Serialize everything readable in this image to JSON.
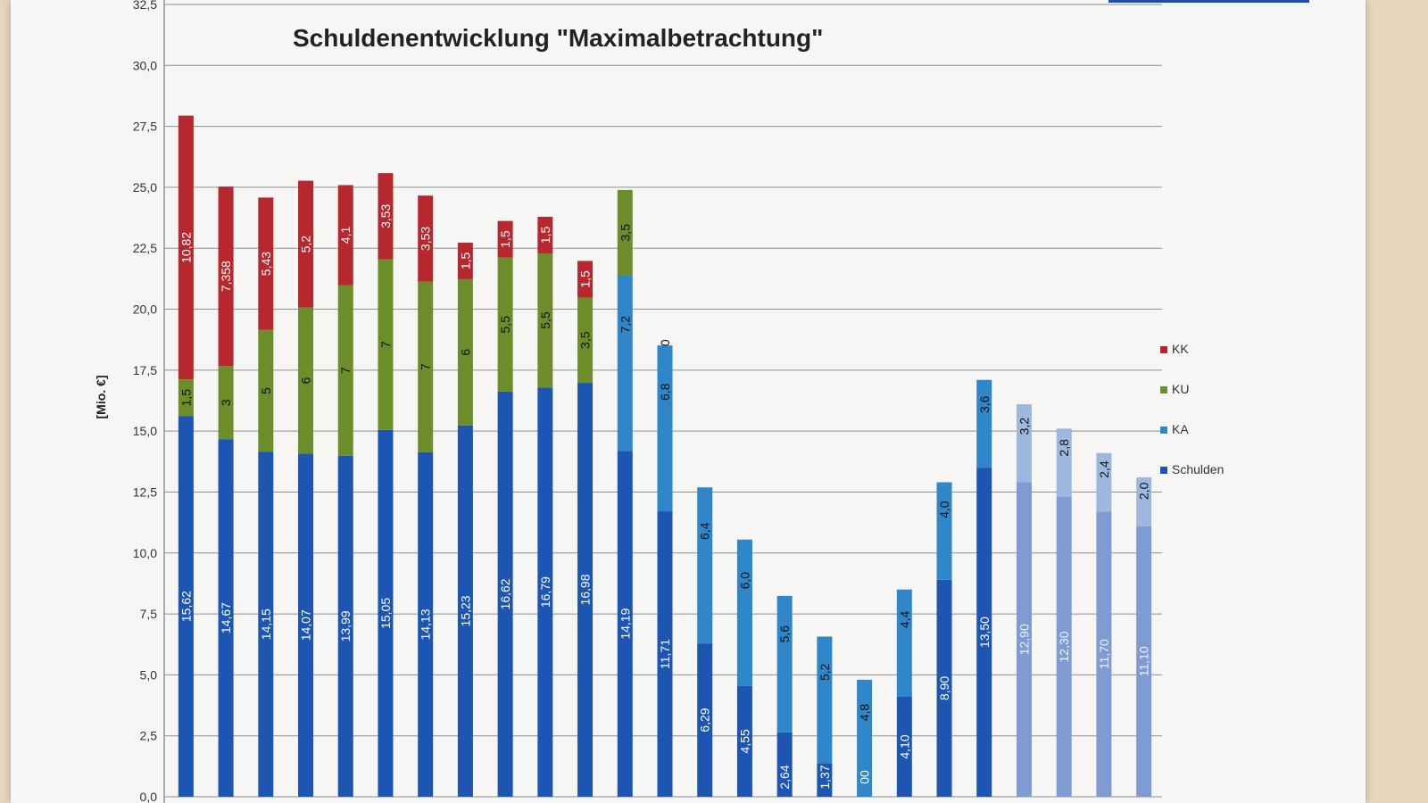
{
  "chart_data": {
    "type": "bar",
    "stacked": true,
    "title": "Schuldenentwicklung \"Maximalbetrachtung\"",
    "ylabel": "[Mio. €]",
    "ylim": [
      0,
      32.5
    ],
    "y_ticks": [
      "0,0",
      "2,5",
      "5,0",
      "7,5",
      "10,0",
      "12,5",
      "15,0",
      "17,5",
      "20,0",
      "22,5",
      "25,0",
      "27,5",
      "30,0",
      "32,5"
    ],
    "grid": true,
    "legend_position": "right",
    "colors": {
      "Schulden": "#1d55b3",
      "KA": "#2f86c8",
      "KU": "#6b8e2a",
      "KK": "#b7282e",
      "Schulden_light": "#7f9bd4",
      "KA_light": "#9db7de"
    },
    "legend": [
      "KK",
      "KU",
      "KA",
      "Schulden"
    ],
    "series": [
      {
        "name": "Schulden",
        "values": [
          15.62,
          14.67,
          14.15,
          14.07,
          13.99,
          15.05,
          14.13,
          15.23,
          16.62,
          16.79,
          16.98,
          14.19,
          11.71,
          6.29,
          4.55,
          2.64,
          1.37,
          0.0,
          4.1,
          8.9,
          13.5,
          12.9,
          12.3,
          11.7,
          11.1
        ],
        "labels": [
          "15,62",
          "14,67",
          "14,15",
          "14,07",
          "13,99",
          "15,05",
          "14,13",
          "15,23",
          "16,62",
          "16,79",
          "16,98",
          "14,19",
          "11,71",
          "6,29",
          "4,55",
          "2,64",
          "1,37",
          "00",
          "4,10",
          "8,90",
          "13,50",
          "12,90",
          "12,30",
          "11,70",
          "11,10"
        ]
      },
      {
        "name": "KA",
        "values": [
          0,
          0,
          0,
          0,
          0,
          0,
          0,
          0,
          0,
          0,
          0,
          7.2,
          6.8,
          6.4,
          6.0,
          5.6,
          5.2,
          4.8,
          4.4,
          4.0,
          3.6,
          3.2,
          2.8,
          2.4,
          2.0
        ],
        "labels": [
          "",
          "",
          "",
          "",
          "",
          "",
          "",
          "",
          "",
          "",
          "",
          "7,2",
          "6,8",
          "6,4",
          "6,0",
          "5,6",
          "5,2",
          "4,8",
          "4,4",
          "4,0",
          "3,6",
          "3,2",
          "2,8",
          "2,4",
          "2,0"
        ]
      },
      {
        "name": "KU",
        "values": [
          1.5,
          3,
          5,
          6,
          7,
          7,
          7,
          6,
          5.5,
          5.5,
          3.5,
          3.5,
          0,
          0,
          0,
          0,
          0,
          0,
          0,
          0,
          0,
          0,
          0,
          0,
          0
        ],
        "labels": [
          "1,5",
          "3",
          "5",
          "6",
          "7",
          "7",
          "7",
          "6",
          "5,5",
          "5,5",
          "3,5",
          "3,5",
          "",
          "",
          "",
          "",
          "",
          "",
          "",
          "",
          "",
          "",
          "",
          "",
          ""
        ]
      },
      {
        "name": "KK",
        "values": [
          10.82,
          7.358,
          5.43,
          5.2,
          4.1,
          3.53,
          3.53,
          1.5,
          1.5,
          1.5,
          1.5,
          0,
          0,
          0,
          0,
          0,
          0,
          0,
          0,
          0,
          0,
          0,
          0,
          0,
          0
        ],
        "labels": [
          "10,82",
          "7,358",
          "5,43",
          "5,2",
          "4,1",
          "3,53",
          "3,53",
          "1,5",
          "1,5",
          "1,5",
          "1,5",
          "",
          "0",
          "",
          "",
          "",
          "",
          "",
          "",
          "",
          "",
          "",
          "",
          "",
          ""
        ]
      }
    ],
    "bar_style": [
      "solid",
      "solid",
      "solid",
      "solid",
      "solid",
      "solid",
      "solid",
      "solid",
      "solid",
      "solid",
      "solid",
      "solid",
      "solid",
      "solid",
      "solid",
      "solid",
      "solid",
      "solid",
      "solid",
      "solid",
      "solid",
      "light",
      "light",
      "light",
      "light"
    ]
  }
}
